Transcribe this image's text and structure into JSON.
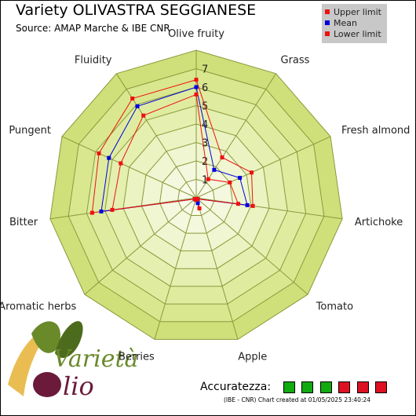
{
  "header": {
    "title": "Variety OLIVASTRA SEGGIANESE",
    "source": "Source: AMAP Marche & IBE CNR"
  },
  "legend": {
    "items": [
      {
        "label": "Upper limit",
        "color": "#ee1111"
      },
      {
        "label": "Mean",
        "color": "#0000dd"
      },
      {
        "label": "Lower limit",
        "color": "#ee1111"
      }
    ]
  },
  "chart_data": {
    "type": "radar",
    "categories": [
      "Olive fruity",
      "Grass",
      "Fresh almond",
      "Artichoke",
      "Tomato",
      "Apple",
      "Berries",
      "Aromatic herbs",
      "Bitter",
      "Pungent",
      "Fluidity"
    ],
    "rlim": [
      0,
      8
    ],
    "tick_labels": [
      "1",
      "2",
      "3",
      "4",
      "5",
      "6",
      "7"
    ],
    "series": [
      {
        "name": "Upper limit",
        "color": "#ee1111",
        "values": [
          6.4,
          2.6,
          3.3,
          3.1,
          0.1,
          0.6,
          0.1,
          0.1,
          5.7,
          5.8,
          6.4
        ]
      },
      {
        "name": "Mean",
        "color": "#0000dd",
        "values": [
          6.0,
          1.8,
          2.6,
          2.8,
          0.1,
          0.3,
          0.1,
          0.1,
          5.2,
          5.2,
          5.9
        ]
      },
      {
        "name": "Lower limit",
        "color": "#ee1111",
        "values": [
          5.6,
          1.2,
          2.0,
          2.3,
          0.1,
          0.1,
          0.1,
          0.1,
          4.6,
          4.5,
          5.3
        ]
      }
    ]
  },
  "accuracy": {
    "label": "Accuratezza:",
    "boxes": [
      "#11aa11",
      "#11aa11",
      "#11aa11",
      "#dd1122",
      "#dd1122",
      "#dd1122"
    ]
  },
  "footer": {
    "text": "(IBE - CNR) Chart created at 01/05/2025 23:40:24"
  },
  "logo": {
    "text": "Varietà Olio"
  }
}
